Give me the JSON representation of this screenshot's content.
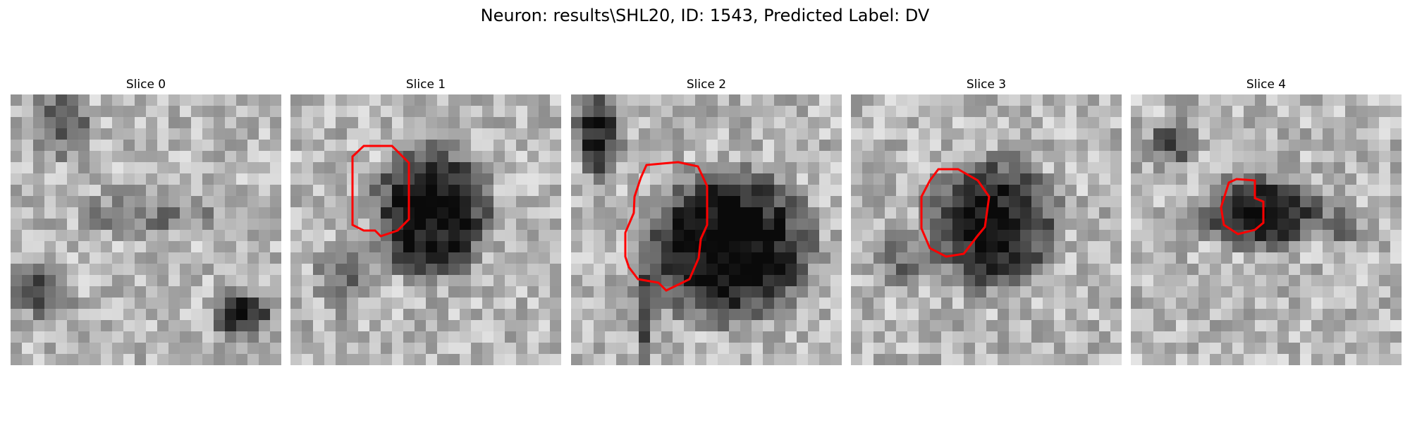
{
  "figure": {
    "title": "Neuron: results\\SHL20, ID: 1543, Predicted Label: DV"
  },
  "colors": {
    "contour": "#ff0000",
    "background": "#ffffff"
  },
  "panels": [
    {
      "title": "Slice 0",
      "has_contour": false
    },
    {
      "title": "Slice 1",
      "has_contour": true
    },
    {
      "title": "Slice 2",
      "has_contour": true
    },
    {
      "title": "Slice 3",
      "has_contour": true
    },
    {
      "title": "Slice 4",
      "has_contour": true
    }
  ]
}
